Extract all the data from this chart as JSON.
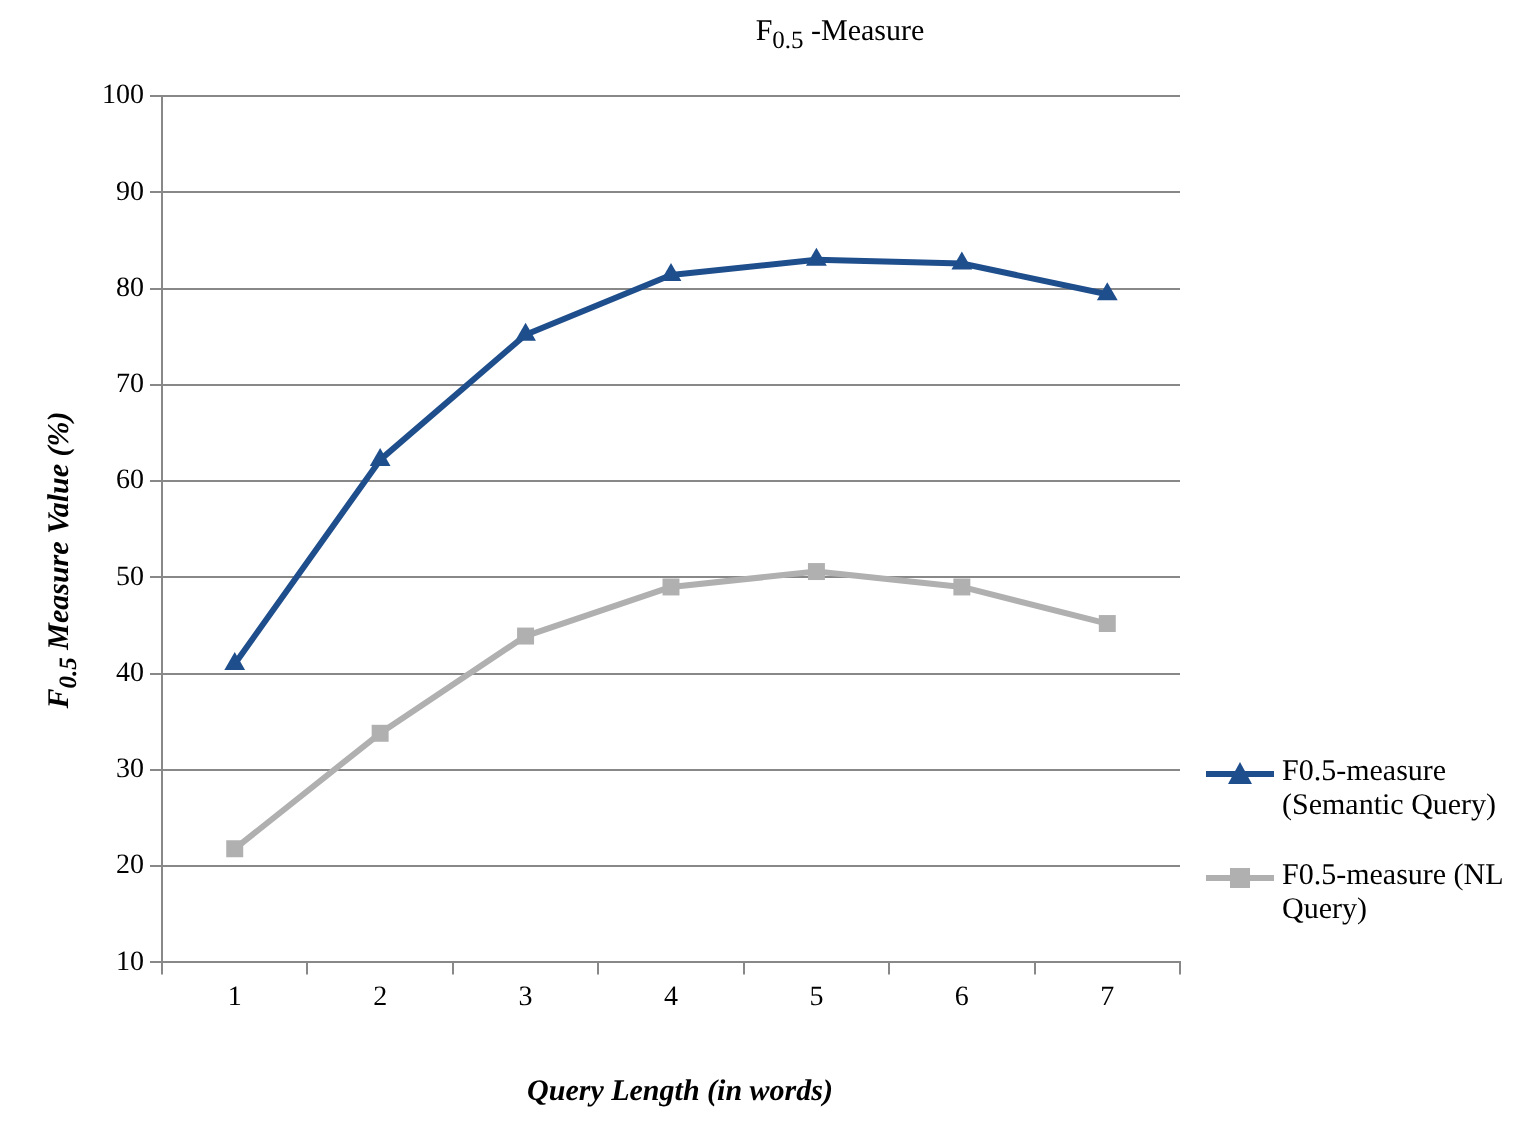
{
  "chart_data": {
    "type": "line",
    "title": "F$_{0.5}$ -Measure",
    "xlabel": "Query Length (in words)",
    "ylabel": "F$_{0.5}$ Measure Value (%)",
    "categories": [
      "1",
      "2",
      "3",
      "4",
      "5",
      "6",
      "7"
    ],
    "series": [
      {
        "name": "F0.5-measure (Semantic Query)",
        "color": "#1f4e8c",
        "marker": "triangle",
        "values": [
          41,
          62.2,
          75.2,
          81.4,
          83,
          82.6,
          79.4
        ]
      },
      {
        "name": "F0.5-measure (NL Query)",
        "color": "#b0b0b0",
        "marker": "square",
        "values": [
          21.8,
          33.8,
          43.9,
          49,
          50.6,
          49,
          45.2
        ]
      }
    ],
    "ylim": [
      10,
      100
    ],
    "yticks": [
      10,
      20,
      30,
      40,
      50,
      60,
      70,
      80,
      90,
      100
    ],
    "grid": "y",
    "legend": "right",
    "line_style": "solid"
  }
}
